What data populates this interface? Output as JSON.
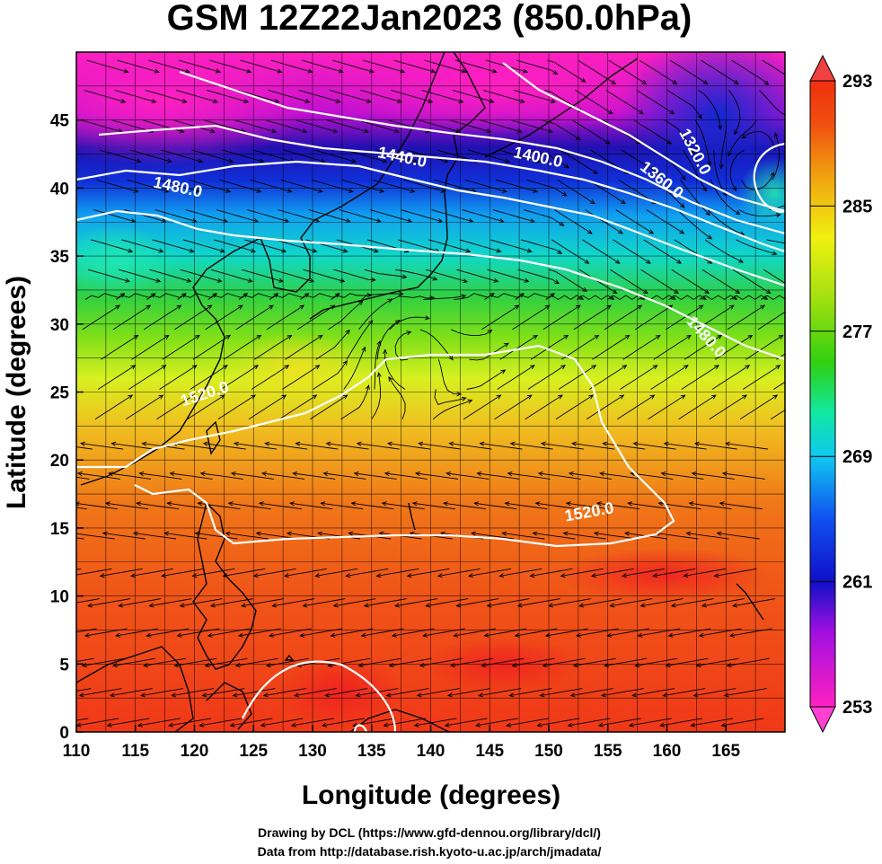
{
  "title": "GSM 12Z22Jan2023 (850.0hPa)",
  "xlabel": "Longitude (degrees)",
  "ylabel": "Latitude  (degrees)",
  "credits": [
    "Drawing by DCL (https://www.gfd-dennou.org/library/dcl/)",
    "Data from http://database.rish.kyoto-u.ac.jp/arch/jmadata/"
  ],
  "map_data": {
    "lon_range": [
      110,
      170
    ],
    "lat_range": [
      0,
      50
    ],
    "lon_ticks": [
      "110",
      "115",
      "120",
      "125",
      "130",
      "135",
      "140",
      "145",
      "150",
      "155",
      "160",
      "165"
    ],
    "lat_ticks": [
      "0",
      "5",
      "10",
      "15",
      "20",
      "25",
      "30",
      "35",
      "40",
      "45"
    ],
    "shaded_field_range": [
      253,
      293
    ],
    "colorbar_ticks": [
      "253",
      "261",
      "269",
      "277",
      "285",
      "293"
    ],
    "colorbar_colors": [
      "#ff20c0",
      "#a010e0",
      "#1010c8",
      "#1050f0",
      "#10c8f0",
      "#10e8a0",
      "#30d010",
      "#a0e010",
      "#f0f010",
      "#f0a010",
      "#f05010",
      "#f03010"
    ],
    "contour_labels": [
      {
        "text": "1480.0",
        "lon": 118.5,
        "lat": 39.7,
        "angle": 12
      },
      {
        "text": "1440.0",
        "lon": 137.5,
        "lat": 41.9,
        "angle": 12
      },
      {
        "text": "1400.0",
        "lon": 149.0,
        "lat": 41.9,
        "angle": 12
      },
      {
        "text": "1360.0",
        "lon": 159.3,
        "lat": 40.3,
        "angle": 38
      },
      {
        "text": "1320.0",
        "lon": 162.0,
        "lat": 42.5,
        "angle": 62
      },
      {
        "text": "1480.0",
        "lon": 163.0,
        "lat": 28.8,
        "angle": 48
      },
      {
        "text": "1520.0",
        "lon": 121.0,
        "lat": 24.5,
        "angle": -18
      },
      {
        "text": "1520.0",
        "lon": 153.5,
        "lat": 15.8,
        "angle": -10
      }
    ]
  }
}
